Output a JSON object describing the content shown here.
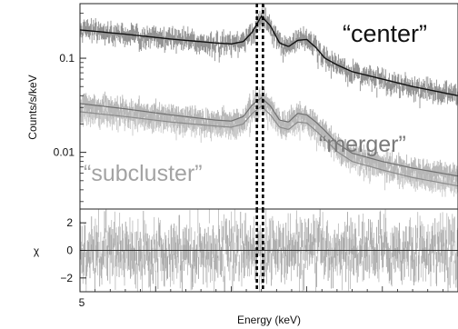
{
  "chart_data": [
    {
      "type": "line",
      "panel": "spectrum",
      "ylabel": "Counts/s/keV",
      "xlabel": "",
      "yscale": "log",
      "ylim": [
        0.0025,
        0.38
      ],
      "xlim": [
        5.0,
        7.5
      ],
      "grid": false,
      "legend": "none",
      "yticks": [
        {
          "value": 0.1,
          "label": "0.1"
        },
        {
          "value": 0.01,
          "label": "0.01"
        }
      ],
      "annotations": [
        {
          "text": "“center”",
          "color": "#111111"
        },
        {
          "text": "“merger”",
          "color": "#7a7a7a"
        },
        {
          "text": "“subcluster”",
          "color": "#a3a3a3"
        }
      ],
      "vertical_lines_keV": [
        6.17,
        6.21
      ],
      "series": [
        {
          "name": "center",
          "color": "#111111",
          "data_color": "#8e8e8e",
          "x": [
            5.0,
            5.3,
            5.6,
            5.9,
            6.0,
            6.08,
            6.14,
            6.2,
            6.26,
            6.32,
            6.38,
            6.44,
            6.5,
            6.56,
            6.62,
            6.7,
            6.8,
            7.0,
            7.2,
            7.5
          ],
          "y": [
            0.2,
            0.18,
            0.16,
            0.145,
            0.142,
            0.15,
            0.19,
            0.28,
            0.22,
            0.145,
            0.133,
            0.155,
            0.158,
            0.13,
            0.1,
            0.085,
            0.072,
            0.06,
            0.05,
            0.04
          ]
        },
        {
          "name": "merger",
          "color": "#6f6f6f",
          "data_color": "#b5b5b5",
          "x": [
            5.0,
            5.3,
            5.6,
            5.9,
            6.0,
            6.08,
            6.14,
            6.2,
            6.26,
            6.32,
            6.38,
            6.44,
            6.5,
            6.56,
            6.62,
            6.7,
            6.8,
            7.0,
            7.2,
            7.5
          ],
          "y": [
            0.033,
            0.029,
            0.025,
            0.022,
            0.0215,
            0.024,
            0.032,
            0.038,
            0.031,
            0.022,
            0.021,
            0.026,
            0.025,
            0.021,
            0.017,
            0.0125,
            0.0098,
            0.008,
            0.0068,
            0.0056
          ]
        },
        {
          "name": "subcluster",
          "color": "#8a8a8a",
          "data_color": "#c7c7c7",
          "x": [
            5.0,
            5.3,
            5.6,
            5.9,
            6.0,
            6.08,
            6.14,
            6.2,
            6.26,
            6.32,
            6.38,
            6.44,
            6.5,
            6.56,
            6.62,
            6.7,
            6.8,
            7.0,
            7.2,
            7.5
          ],
          "y": [
            0.027,
            0.024,
            0.021,
            0.019,
            0.0185,
            0.02,
            0.026,
            0.031,
            0.025,
            0.0185,
            0.0175,
            0.021,
            0.0205,
            0.017,
            0.0138,
            0.0102,
            0.008,
            0.0065,
            0.0054,
            0.0044
          ]
        }
      ]
    },
    {
      "type": "scatter",
      "panel": "residuals",
      "ylabel": "χ",
      "xlabel": "Energy (keV)",
      "ylim": [
        -3.0,
        3.0
      ],
      "xlim": [
        5.0,
        7.5
      ],
      "grid": false,
      "legend": "none",
      "yticks": [
        {
          "value": 2,
          "label": "2"
        },
        {
          "value": 0,
          "label": "0"
        },
        {
          "value": -2,
          "label": "−2"
        }
      ],
      "xticks": [
        {
          "value": 5,
          "label": "5"
        }
      ],
      "zero_line": 0,
      "residual_spread": 1.0,
      "vertical_lines_keV": [
        6.17,
        6.21
      ]
    }
  ]
}
